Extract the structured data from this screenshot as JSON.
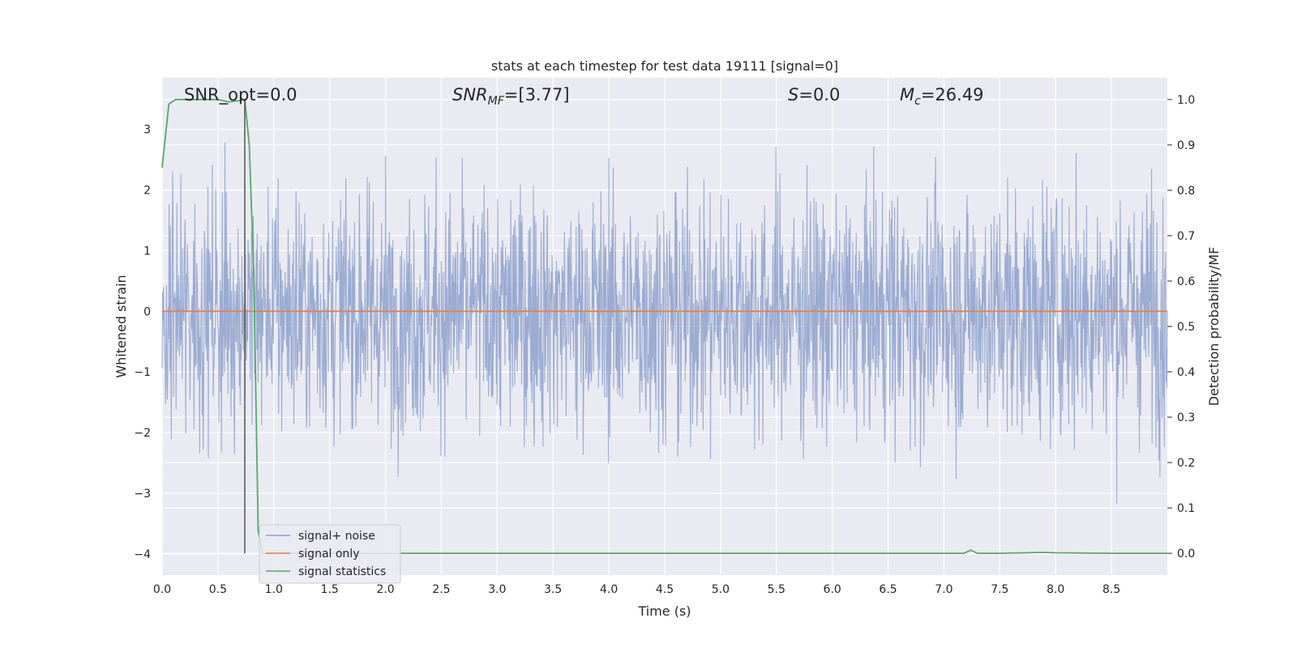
{
  "chart_data": {
    "type": "line",
    "title": "stats at each timestep for test data 19111 [signal=0]",
    "xlabel": "Time (s)",
    "ylabel": "Whitened strain",
    "y2label": "Detection probability/MF",
    "xlim": [
      0,
      9.0
    ],
    "ylim": [
      -4.35,
      3.85
    ],
    "y2lim": [
      -0.048,
      1.048
    ],
    "xticks": [
      0.0,
      0.5,
      1.0,
      1.5,
      2.0,
      2.5,
      3.0,
      3.5,
      4.0,
      4.5,
      5.0,
      5.5,
      6.0,
      6.5,
      7.0,
      7.5,
      8.0,
      8.5
    ],
    "xtick_labels": [
      "0.0",
      "0.5",
      "1.0",
      "1.5",
      "2.0",
      "2.5",
      "3.0",
      "3.5",
      "4.0",
      "4.5",
      "5.0",
      "5.5",
      "6.0",
      "6.5",
      "7.0",
      "7.5",
      "8.0",
      "8.5"
    ],
    "yticks": [
      -4,
      -3,
      -2,
      -1,
      0,
      1,
      2,
      3
    ],
    "ytick_labels": [
      "−4",
      "−3",
      "−2",
      "−1",
      "0",
      "1",
      "2",
      "3"
    ],
    "y2ticks": [
      0.0,
      0.1,
      0.2,
      0.3,
      0.4,
      0.5,
      0.6,
      0.7,
      0.8,
      0.9,
      1.0
    ],
    "y2tick_labels": [
      "0.0",
      "0.1",
      "0.2",
      "0.3",
      "0.4",
      "0.5",
      "0.6",
      "0.7",
      "0.8",
      "0.9",
      "1.0"
    ],
    "grid": true,
    "legend_position": "bottom-left",
    "annotations": [
      {
        "label": "SNR_opt=0.0"
      },
      {
        "label": "SNR",
        "sub": "MF",
        "suffix": "=[3.77]"
      },
      {
        "label": "S",
        "suffix": "=0.0"
      },
      {
        "label": "M",
        "sub": "c",
        "suffix": "=26.49"
      }
    ],
    "vline_x": 0.74,
    "series": [
      {
        "name": "signal+ noise",
        "color": "#8da0cb",
        "axis": "left",
        "kind": "noise",
        "sample_rate": 256,
        "amplitude_sd": 1.0,
        "range": [
          -4.0,
          3.5
        ]
      },
      {
        "name": "signal only",
        "color": "#dd8452",
        "axis": "left",
        "x": [
          0.0,
          9.0
        ],
        "y": [
          0.0,
          0.0
        ]
      },
      {
        "name": "signal statistics",
        "color": "#55a868",
        "axis": "right",
        "x": [
          0.0,
          0.06,
          0.12,
          0.3,
          0.5,
          0.6,
          0.7,
          0.74,
          0.78,
          0.82,
          0.86,
          0.9,
          0.95,
          1.0,
          2.0,
          3.0,
          4.0,
          5.0,
          6.0,
          7.0,
          7.18,
          7.24,
          7.3,
          7.5,
          7.9,
          8.0,
          8.5,
          9.0
        ],
        "y": [
          0.85,
          0.99,
          1.0,
          1.0,
          1.0,
          0.995,
          0.998,
          1.0,
          0.9,
          0.62,
          0.05,
          0.0,
          0.0,
          0.0,
          0.0,
          0.0,
          0.0,
          0.0,
          0.0,
          0.0,
          0.0,
          0.007,
          0.0,
          0.0,
          0.002,
          0.001,
          0.0,
          0.0
        ]
      }
    ]
  }
}
